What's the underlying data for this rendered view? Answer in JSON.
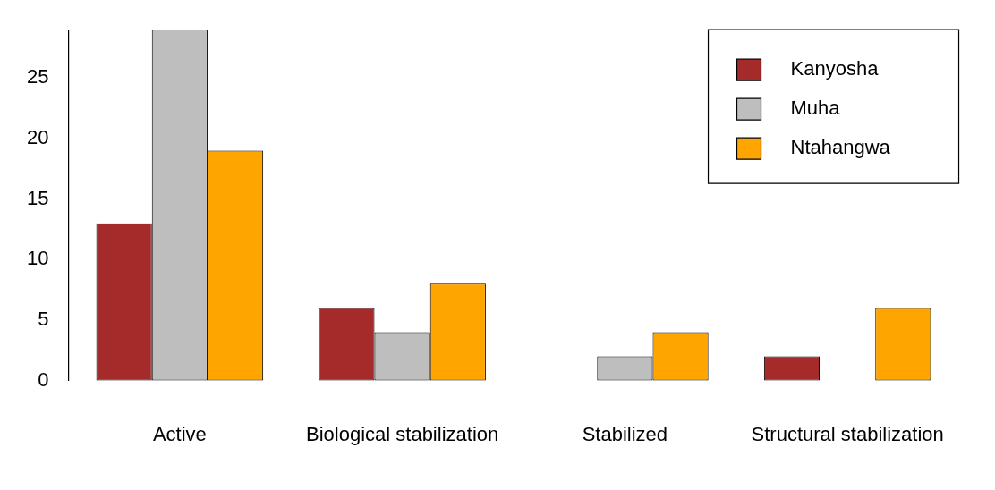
{
  "chart_data": {
    "type": "bar",
    "categories": [
      "Active",
      "Biological stabilization",
      "Stabilized",
      "Structural stabilization"
    ],
    "series": [
      {
        "name": "Kanyosha",
        "color": "#a52a2a",
        "values": [
          13,
          6,
          0,
          2
        ]
      },
      {
        "name": "Muha",
        "color": "#bebebe",
        "values": [
          29,
          4,
          2,
          0
        ]
      },
      {
        "name": "Ntahangwa",
        "color": "#ffa500",
        "values": [
          19,
          8,
          4,
          6
        ]
      }
    ],
    "ylim": [
      0,
      29
    ],
    "yticks": [
      0,
      5,
      10,
      15,
      20,
      25
    ],
    "grid": false,
    "legend": "top right"
  }
}
